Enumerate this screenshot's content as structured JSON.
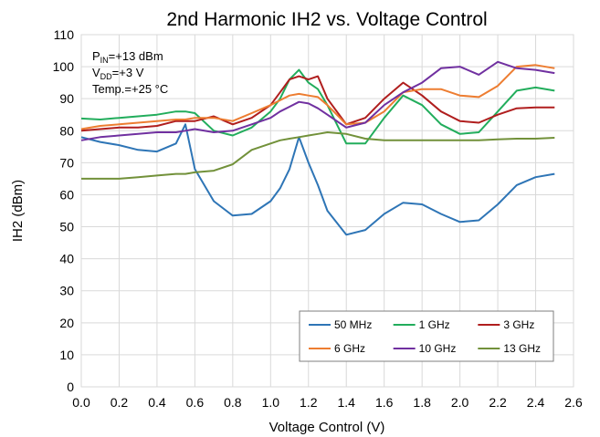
{
  "chart_data": {
    "type": "line",
    "title": "2nd Harmonic IH2 vs. Voltage Control",
    "x_label": "Voltage Control (V)",
    "y_label": "IH2 (dBm)",
    "annotations": [
      {
        "main": "P",
        "sub": "IN",
        "rest": "=+13 dBm"
      },
      {
        "main": "V",
        "sub": "DD",
        "rest": "=+3 V"
      },
      {
        "main": "Temp.=+25 °C"
      }
    ],
    "x": [
      0,
      0.1,
      0.2,
      0.3,
      0.4,
      0.5,
      0.55,
      0.6,
      0.7,
      0.8,
      0.9,
      1.0,
      1.05,
      1.1,
      1.15,
      1.2,
      1.25,
      1.3,
      1.4,
      1.5,
      1.6,
      1.7,
      1.8,
      1.9,
      2.0,
      2.1,
      2.2,
      2.3,
      2.4,
      2.5
    ],
    "series": [
      {
        "name": "50 MHz",
        "color": "#2e75b6",
        "values": [
          78,
          76.5,
          75.5,
          74,
          73.5,
          76,
          82,
          68,
          58,
          53.5,
          54,
          58,
          62,
          68,
          78,
          70,
          63,
          55,
          47.5,
          49,
          54,
          57.5,
          57,
          54,
          51.5,
          52,
          57,
          63,
          65.5,
          66.5
        ]
      },
      {
        "name": "1 GHz",
        "color": "#22ad5c",
        "values": [
          83.8,
          83.5,
          84,
          84.5,
          85,
          86,
          86,
          85.5,
          80,
          78.5,
          81,
          86,
          90,
          96,
          99,
          95,
          93,
          88,
          76,
          76,
          84,
          91,
          88,
          82,
          79,
          79.5,
          86,
          92.5,
          93.5,
          92.5
        ]
      },
      {
        "name": "3 GHz",
        "color": "#b01e1e",
        "values": [
          80,
          80.5,
          81,
          81,
          81.5,
          83,
          83,
          83,
          84.5,
          82,
          84,
          88,
          92,
          96,
          97,
          96,
          97,
          90,
          82,
          84,
          90,
          95,
          91,
          86,
          83,
          82.5,
          85,
          87,
          87.3,
          87.3
        ]
      },
      {
        "name": "6 GHz",
        "color": "#ed7d31",
        "values": [
          80.5,
          81.5,
          82,
          82.5,
          83,
          83.5,
          83.5,
          84,
          84,
          83,
          85.5,
          88,
          89.5,
          91,
          91.5,
          91,
          90.5,
          88,
          82,
          82.5,
          86,
          92,
          93,
          93,
          91,
          90.5,
          94,
          100,
          100.5,
          99.5
        ]
      },
      {
        "name": "10 GHz",
        "color": "#7030a0",
        "values": [
          77,
          78,
          78.5,
          79,
          79.5,
          79.5,
          80,
          80.5,
          79.5,
          80,
          82,
          84,
          86,
          87.5,
          89,
          88.5,
          87,
          85,
          81,
          82.5,
          88,
          92,
          95,
          99.5,
          100,
          97.5,
          101.5,
          99.5,
          99,
          98
        ]
      },
      {
        "name": "13 GHz",
        "color": "#72913a",
        "values": [
          65,
          65,
          65,
          65.5,
          66,
          66.5,
          66.5,
          67,
          67.5,
          69.5,
          74,
          76,
          77,
          77.5,
          78,
          78.5,
          79,
          79.5,
          79,
          77.5,
          77,
          77,
          77,
          77,
          77,
          77,
          77.3,
          77.5,
          77.5,
          77.8
        ]
      }
    ],
    "xlim": [
      0,
      2.6
    ],
    "ylim": [
      0,
      110
    ],
    "xticks": [
      {
        "value": 0,
        "label": "0.0"
      },
      0.2,
      0.4,
      0.6,
      0.8,
      {
        "value": 1,
        "label": "1.0"
      },
      1.2,
      1.4,
      1.6,
      1.8,
      {
        "value": 2,
        "label": "2.0"
      },
      2.2,
      2.4,
      2.6
    ],
    "yticks": [
      0,
      10,
      20,
      30,
      40,
      50,
      60,
      70,
      80,
      90,
      100,
      110
    ],
    "grid": true,
    "legend": "lower right"
  }
}
